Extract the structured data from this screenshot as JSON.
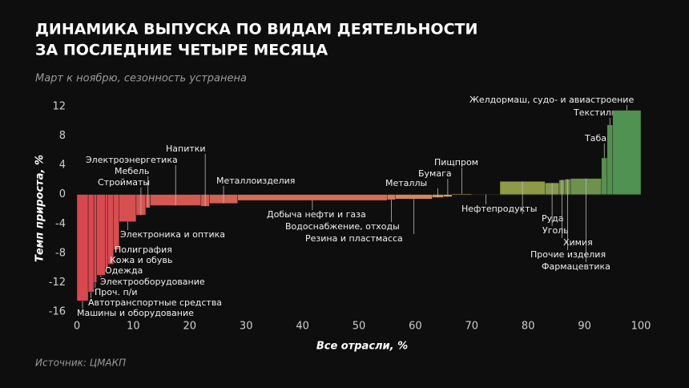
{
  "chart_data": {
    "type": "variwidth_bar",
    "title": [
      "ДИНАМИКА ВЫПУСКА ПО ВИДАМ ДЕЯТЕЛЬНОСТИ",
      "ЗА ПОСЛЕДНИЕ ЧЕТЫРЕ МЕСЯЦА"
    ],
    "subtitle": "Март к ноябрю, сезонность устранена",
    "y_label": "Темп прироста, %",
    "x_label": "Все отрасли, %",
    "source": "Источник: ЦМАКП",
    "categories": [
      "Машины и оборудование",
      "Автотранспортные средства",
      "Проч. п/и",
      "Электрооборудование",
      "Одежда",
      "Кожа и обувь",
      "Полиграфия",
      "Электроника и оптика",
      "Стройматы",
      "Мебель",
      "Электроэнергетика",
      "Напитки",
      "Металлоизделия",
      "Добыча нефти и газа",
      "Водоснабжение, отходы",
      "Резина и пластмасса",
      "Металлы",
      "Бумага",
      "Пищпром",
      "Нефтепродукты",
      "Руда",
      "Уголь",
      "Химия",
      "Прочие изделия",
      "Фармацевтика",
      "Табак",
      "Текстиль",
      "Желдормаш, судо- и авиастроение"
    ],
    "bins": [
      0,
      2,
      3,
      3.5,
      5,
      5.5,
      6.5,
      7.5,
      10.5,
      12.2,
      13,
      22,
      23.5,
      28.5,
      55,
      56.5,
      63,
      65,
      66.5,
      70,
      75,
      83,
      85.5,
      86.5,
      87.5,
      93,
      94,
      95,
      100
    ],
    "values": [
      -14.5,
      -13.3,
      -12,
      -11,
      -10,
      -9.5,
      -7.5,
      -3.7,
      -2.8,
      -1.8,
      -1.5,
      -1.6,
      -1.2,
      -0.8,
      -0.7,
      -0.6,
      -0.4,
      -0.3,
      0.1,
      0,
      1.8,
      1.6,
      2,
      2.1,
      2.2,
      5,
      9.5,
      11.5
    ],
    "colors": [
      "#d9474f",
      "#d9474f",
      "#d84950",
      "#d84a50",
      "#d84b50",
      "#d74c50",
      "#d74d50",
      "#d65050",
      "#d55450",
      "#d45651",
      "#d35952",
      "#d35c52",
      "#d26253",
      "#d46e55",
      "#d47a57",
      "#d6875a",
      "#d8925c",
      "#d99a5e",
      "#a89a52",
      "#8a8a3d",
      "#8f9a48",
      "#86984a",
      "#7f964c",
      "#77944d",
      "#6c924e",
      "#5b8f50",
      "#529050",
      "#4f9251"
    ],
    "xlim": [
      0,
      100
    ],
    "xticks": [
      0,
      10,
      20,
      30,
      40,
      50,
      60,
      70,
      80,
      90,
      100
    ],
    "ylim": [
      -16,
      12
    ],
    "yticks": [
      -16,
      -12,
      -8,
      -4,
      0,
      4,
      8,
      12
    ]
  }
}
